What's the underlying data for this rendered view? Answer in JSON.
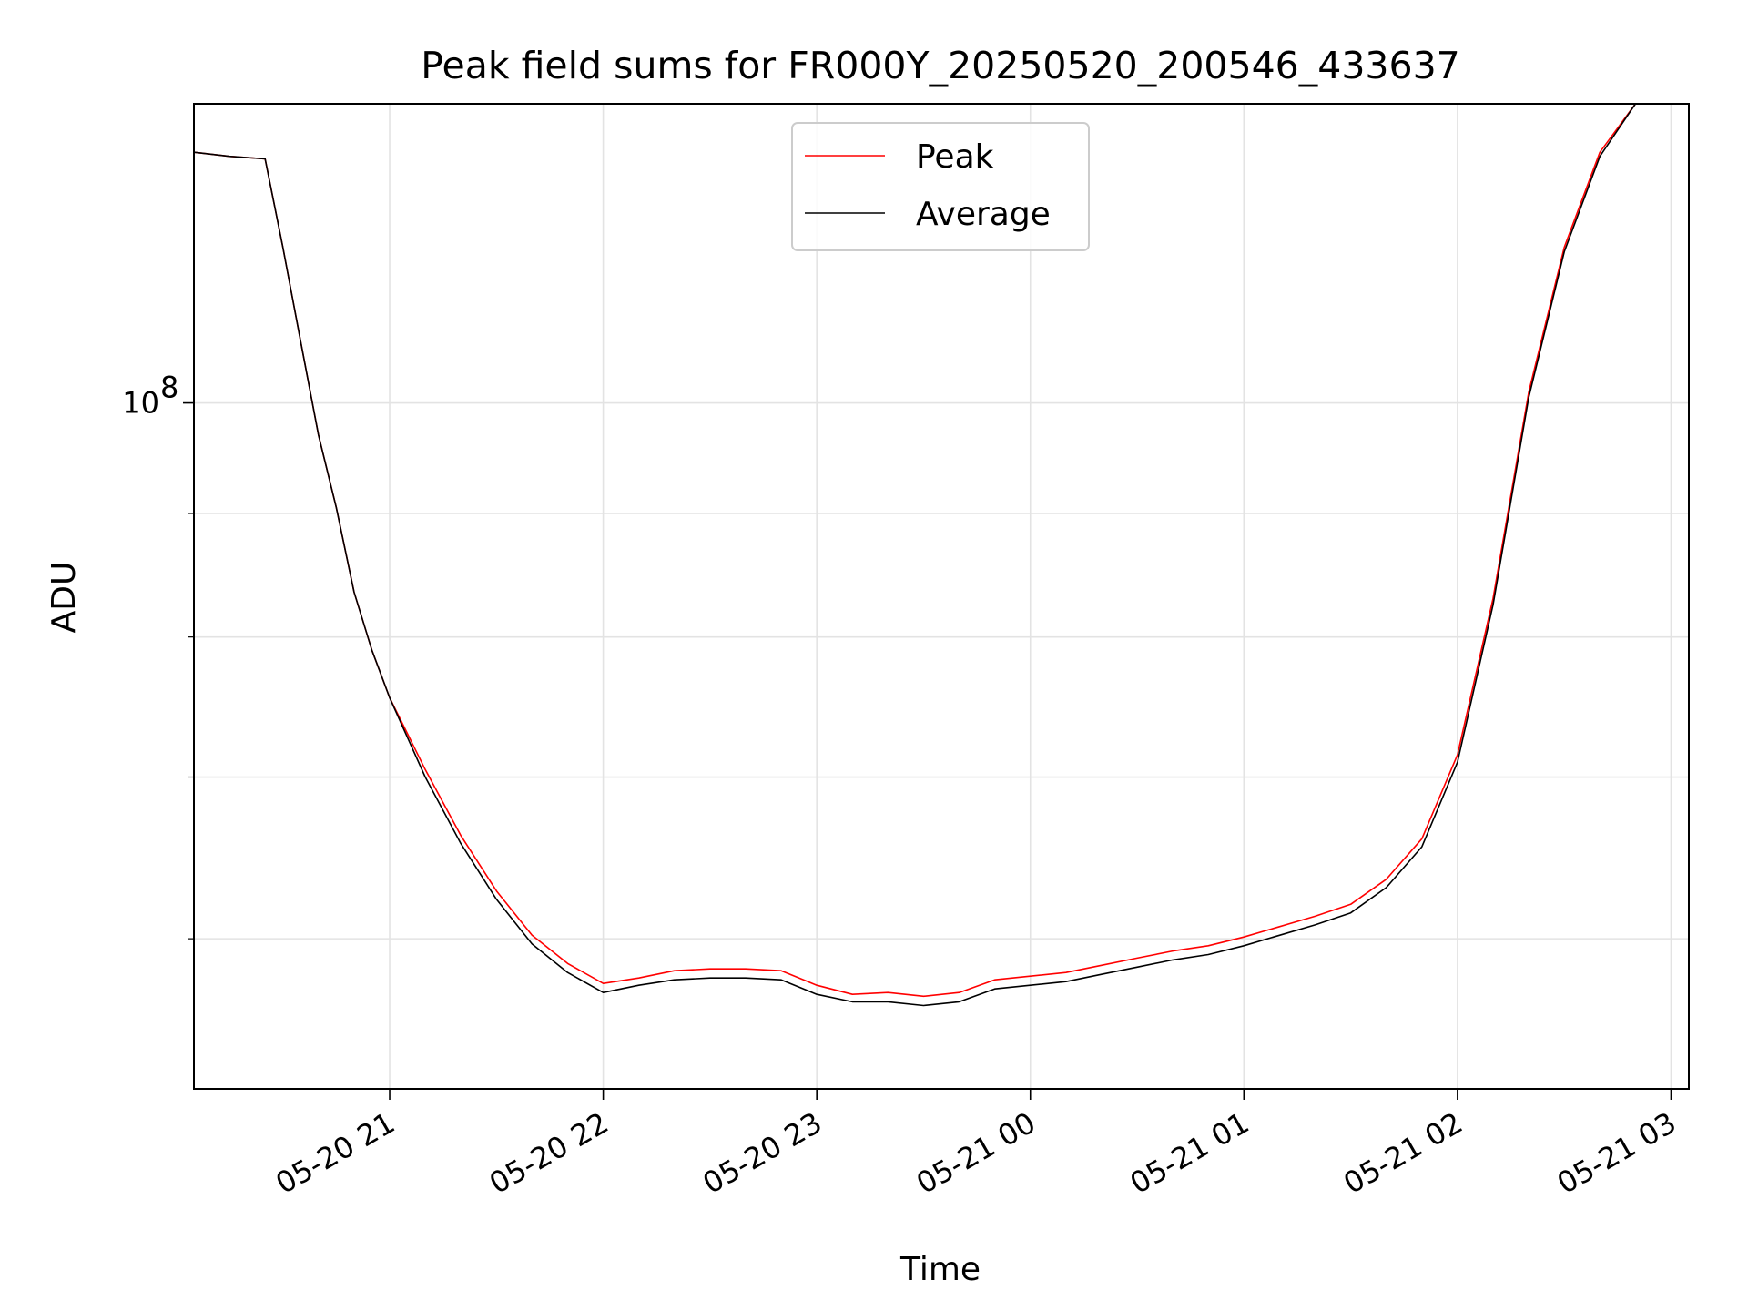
{
  "chart_data": {
    "type": "line",
    "title": "Peak field sums for FR000Y_20250520_200546_433637",
    "xlabel": "Time",
    "ylabel": "ADU",
    "yscale": "log",
    "x_range": [
      "2025-05-20 20:05",
      "2025-05-21 03:05"
    ],
    "ylim": [
      52000000,
      133000000
    ],
    "x_ticks": [
      {
        "t": "2025-05-20 21:00",
        "label": "05-20 21"
      },
      {
        "t": "2025-05-20 22:00",
        "label": "05-20 22"
      },
      {
        "t": "2025-05-20 23:00",
        "label": "05-20 23"
      },
      {
        "t": "2025-05-21 00:00",
        "label": "05-21 00"
      },
      {
        "t": "2025-05-21 01:00",
        "label": "05-21 01"
      },
      {
        "t": "2025-05-21 02:00",
        "label": "05-21 02"
      },
      {
        "t": "2025-05-21 03:00",
        "label": "05-21 03"
      }
    ],
    "y_major_ticks": [
      {
        "value": 100000000,
        "base": "10",
        "exp": "8"
      }
    ],
    "y_minor_ticks": [
      60000000,
      70000000,
      80000000,
      90000000,
      200000000
    ],
    "grid": true,
    "legend_position": "upper center",
    "series": [
      {
        "name": "Peak",
        "color": "#ff0000",
        "points": [
          [
            "2025-05-20 20:05",
            127000000
          ],
          [
            "2025-05-20 20:15",
            126500000
          ],
          [
            "2025-05-20 20:25",
            126200000
          ],
          [
            "2025-05-20 20:30",
            116000000
          ],
          [
            "2025-05-20 20:35",
            106000000
          ],
          [
            "2025-05-20 20:40",
            97000000
          ],
          [
            "2025-05-20 20:45",
            90500000
          ],
          [
            "2025-05-20 20:50",
            83500000
          ],
          [
            "2025-05-20 20:55",
            79000000
          ],
          [
            "2025-05-20 21:00",
            75500000
          ],
          [
            "2025-05-20 21:10",
            70500000
          ],
          [
            "2025-05-20 21:20",
            66200000
          ],
          [
            "2025-05-20 21:30",
            62800000
          ],
          [
            "2025-05-20 21:40",
            60200000
          ],
          [
            "2025-05-20 21:50",
            58600000
          ],
          [
            "2025-05-20 22:00",
            57500000
          ],
          [
            "2025-05-20 22:10",
            57800000
          ],
          [
            "2025-05-20 22:20",
            58200000
          ],
          [
            "2025-05-20 22:30",
            58300000
          ],
          [
            "2025-05-20 22:40",
            58300000
          ],
          [
            "2025-05-20 22:50",
            58200000
          ],
          [
            "2025-05-20 23:00",
            57400000
          ],
          [
            "2025-05-20 23:10",
            56900000
          ],
          [
            "2025-05-20 23:20",
            57000000
          ],
          [
            "2025-05-20 23:30",
            56800000
          ],
          [
            "2025-05-20 23:40",
            57000000
          ],
          [
            "2025-05-20 23:50",
            57700000
          ],
          [
            "2025-05-21 00:00",
            57900000
          ],
          [
            "2025-05-21 00:10",
            58100000
          ],
          [
            "2025-05-21 00:20",
            58500000
          ],
          [
            "2025-05-21 00:30",
            58900000
          ],
          [
            "2025-05-21 00:40",
            59300000
          ],
          [
            "2025-05-21 00:50",
            59600000
          ],
          [
            "2025-05-21 01:00",
            60100000
          ],
          [
            "2025-05-21 01:10",
            60700000
          ],
          [
            "2025-05-21 01:20",
            61300000
          ],
          [
            "2025-05-21 01:30",
            62000000
          ],
          [
            "2025-05-21 01:40",
            63500000
          ],
          [
            "2025-05-21 01:50",
            66000000
          ],
          [
            "2025-05-21 02:00",
            71500000
          ],
          [
            "2025-05-21 02:10",
            83000000
          ],
          [
            "2025-05-21 02:20",
            101000000
          ],
          [
            "2025-05-21 02:30",
            116000000
          ],
          [
            "2025-05-21 02:40",
            127000000
          ],
          [
            "2025-05-21 02:50",
            133000000
          ]
        ]
      },
      {
        "name": "Average",
        "color": "#000000",
        "points": [
          [
            "2025-05-20 20:05",
            127000000
          ],
          [
            "2025-05-20 20:15",
            126500000
          ],
          [
            "2025-05-20 20:25",
            126200000
          ],
          [
            "2025-05-20 20:30",
            116000000
          ],
          [
            "2025-05-20 20:35",
            106000000
          ],
          [
            "2025-05-20 20:40",
            97000000
          ],
          [
            "2025-05-20 20:45",
            90500000
          ],
          [
            "2025-05-20 20:50",
            83500000
          ],
          [
            "2025-05-20 20:55",
            79000000
          ],
          [
            "2025-05-20 21:00",
            75500000
          ],
          [
            "2025-05-20 21:10",
            70000000
          ],
          [
            "2025-05-20 21:20",
            65700000
          ],
          [
            "2025-05-20 21:30",
            62300000
          ],
          [
            "2025-05-20 21:40",
            59700000
          ],
          [
            "2025-05-20 21:50",
            58100000
          ],
          [
            "2025-05-20 22:00",
            57000000
          ],
          [
            "2025-05-20 22:10",
            57400000
          ],
          [
            "2025-05-20 22:20",
            57700000
          ],
          [
            "2025-05-20 22:30",
            57800000
          ],
          [
            "2025-05-20 22:40",
            57800000
          ],
          [
            "2025-05-20 22:50",
            57700000
          ],
          [
            "2025-05-20 23:00",
            56900000
          ],
          [
            "2025-05-20 23:10",
            56500000
          ],
          [
            "2025-05-20 23:20",
            56500000
          ],
          [
            "2025-05-20 23:30",
            56300000
          ],
          [
            "2025-05-20 23:40",
            56500000
          ],
          [
            "2025-05-20 23:50",
            57200000
          ],
          [
            "2025-05-21 00:00",
            57400000
          ],
          [
            "2025-05-21 00:10",
            57600000
          ],
          [
            "2025-05-21 00:20",
            58000000
          ],
          [
            "2025-05-21 00:30",
            58400000
          ],
          [
            "2025-05-21 00:40",
            58800000
          ],
          [
            "2025-05-21 00:50",
            59100000
          ],
          [
            "2025-05-21 01:00",
            59600000
          ],
          [
            "2025-05-21 01:10",
            60200000
          ],
          [
            "2025-05-21 01:20",
            60800000
          ],
          [
            "2025-05-21 01:30",
            61500000
          ],
          [
            "2025-05-21 01:40",
            63000000
          ],
          [
            "2025-05-21 01:50",
            65500000
          ],
          [
            "2025-05-21 02:00",
            71000000
          ],
          [
            "2025-05-21 02:10",
            82500000
          ],
          [
            "2025-05-21 02:20",
            100500000
          ],
          [
            "2025-05-21 02:30",
            115500000
          ],
          [
            "2025-05-21 02:40",
            126500000
          ],
          [
            "2025-05-21 02:50",
            133000000
          ]
        ]
      }
    ]
  }
}
